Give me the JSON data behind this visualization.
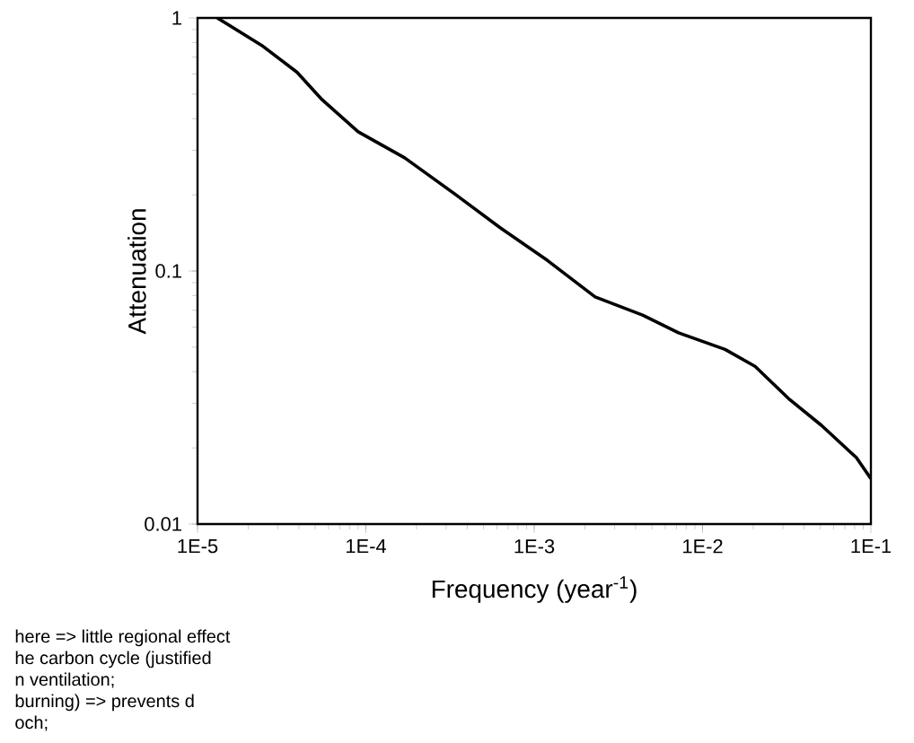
{
  "chart_data": {
    "type": "line",
    "xlabel": "Frequency (year$^{-1}$)",
    "ylabel": "Attenuation",
    "log": "xy",
    "x": [
      1.31e-05,
      2.4e-05,
      3.9e-05,
      5.5e-05,
      9e-05,
      0.00017,
      0.00035,
      0.00063,
      0.0012,
      0.0023,
      0.0044,
      0.0072,
      0.0136,
      0.0205,
      0.033,
      0.051,
      0.082,
      0.1
    ],
    "series": [
      {
        "color": "#000000",
        "values": [
          1.0,
          0.78,
          0.61,
          0.475,
          0.355,
          0.28,
          0.198,
          0.148,
          0.11,
          0.079,
          0.067,
          0.057,
          0.049,
          0.042,
          0.031,
          0.0245,
          0.0183,
          0.0151
        ]
      }
    ],
    "xlim": [
      1e-05,
      0.1
    ],
    "ylim": [
      0.01,
      1
    ],
    "xticks": [
      {
        "value": 1e-05,
        "label": "1E-5"
      },
      {
        "value": 0.0001,
        "label": "1E-4"
      },
      {
        "value": 0.001,
        "label": "1E-3"
      },
      {
        "value": 0.01,
        "label": "1E-2"
      },
      {
        "value": 0.1,
        "label": "1E-1"
      }
    ],
    "yticks": [
      0.01,
      0.1,
      1
    ],
    "grid": false,
    "marker": "none",
    "line_style": "solid",
    "annotations": [
      "here => little regional effect",
      "he carbon cycle (justified",
      "n ventilation;",
      "burning)  =>  prevents  d",
      "och;"
    ]
  }
}
